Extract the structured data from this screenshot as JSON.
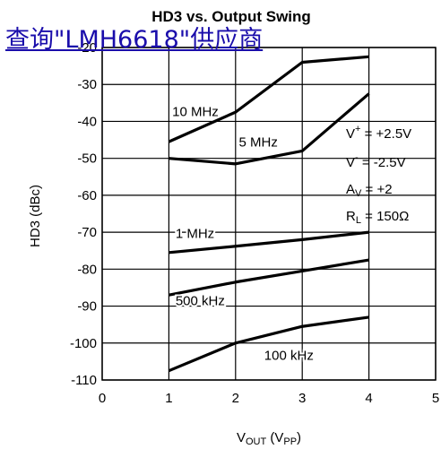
{
  "overlay_link": {
    "text": "查询\"LMH6618\"供应商"
  },
  "chart_data": {
    "type": "line",
    "title": "HD3 vs. Output Swing",
    "xlabel": {
      "main": "V",
      "sub": "OUT",
      "rest": " (V",
      "sub2": "PP",
      "end": ")"
    },
    "ylabel": "HD3 (dBc)",
    "xlim": [
      0,
      5
    ],
    "ylim": [
      -110,
      -20
    ],
    "xticks": [
      0,
      1,
      2,
      3,
      4,
      5
    ],
    "yticks": [
      -20,
      -30,
      -40,
      -50,
      -60,
      -70,
      -80,
      -90,
      -100,
      -110
    ],
    "grid": true,
    "series": [
      {
        "name": "10 MHz",
        "x": [
          1,
          2,
          3,
          4
        ],
        "y": [
          -45.5,
          -37.5,
          -24,
          -22.5
        ]
      },
      {
        "name": "5 MHz",
        "x": [
          1,
          2,
          3,
          4
        ],
        "y": [
          -50,
          -51.5,
          -48,
          -32.5
        ]
      },
      {
        "name": "1 MHz",
        "x": [
          1,
          2,
          3,
          4
        ],
        "y": [
          -75.5,
          -73.8,
          -72,
          -70
        ]
      },
      {
        "name": "500 kHz",
        "x": [
          1,
          2,
          3,
          4
        ],
        "y": [
          -87,
          -83.5,
          -80.5,
          -77.5
        ]
      },
      {
        "name": "100 kHz",
        "x": [
          1,
          2,
          3,
          4
        ],
        "y": [
          -107.5,
          -100,
          -95.5,
          -93
        ]
      }
    ],
    "conditions": [
      {
        "main": "V",
        "sup": "+",
        "rest": " = +2.5V"
      },
      {
        "main": "V",
        "sup": "-",
        "rest": " = -2.5V"
      },
      {
        "main": "A",
        "sub": "V",
        "rest": " = +2"
      },
      {
        "main": "R",
        "sub": "L",
        "rest": " = 150Ω"
      }
    ]
  }
}
